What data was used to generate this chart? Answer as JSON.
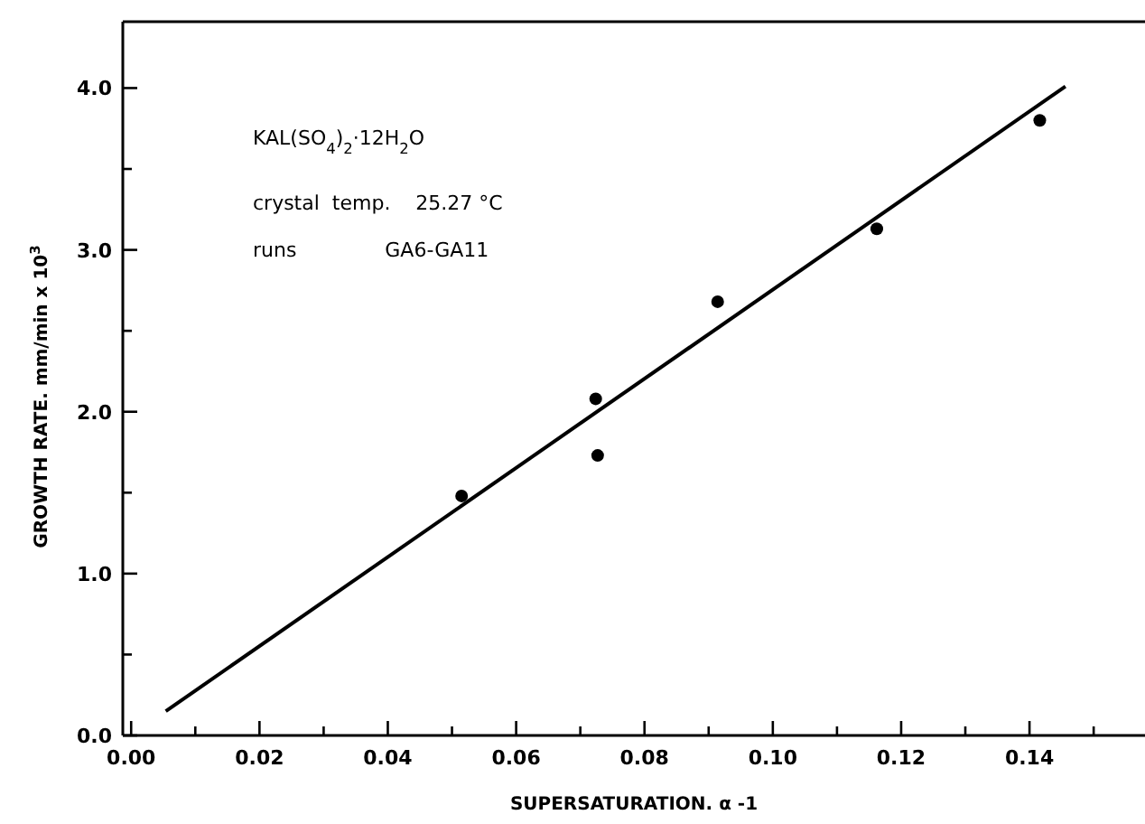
{
  "chart_data": {
    "type": "scatter",
    "xlabel": "SUPERSATURATION. α -1",
    "ylabel": "GROWTH RATE. mm/min x 10$^{3}$",
    "annotations": [
      "KAL(SO$_{4}$)$_{2}$·12H$_{2}$O",
      "crystal  temp.    25.27 °C",
      "runs              GA6-GA11"
    ],
    "xlim": [
      -0.0013,
      0.158
    ],
    "ylim": [
      0,
      4.41
    ],
    "xticks": [
      {
        "value": 0,
        "label": "0.00"
      },
      {
        "value": 0.01,
        "label": null
      },
      {
        "value": 0.02,
        "label": "0.02"
      },
      {
        "value": 0.03,
        "label": null
      },
      {
        "value": 0.04,
        "label": "0.04"
      },
      {
        "value": 0.05,
        "label": null
      },
      {
        "value": 0.06,
        "label": "0.06"
      },
      {
        "value": 0.07,
        "label": null
      },
      {
        "value": 0.08,
        "label": "0.08"
      },
      {
        "value": 0.09,
        "label": null
      },
      {
        "value": 0.1,
        "label": "0.10"
      },
      {
        "value": 0.11,
        "label": null
      },
      {
        "value": 0.12,
        "label": "0.12"
      },
      {
        "value": 0.13,
        "label": null
      },
      {
        "value": 0.14,
        "label": "0.14"
      },
      {
        "value": 0.15,
        "label": null
      }
    ],
    "yticks": [
      {
        "value": 0,
        "label": "0.0"
      },
      {
        "value": 0.5,
        "label": null
      },
      {
        "value": 1,
        "label": "1.0"
      },
      {
        "value": 1.5,
        "label": null
      },
      {
        "value": 2,
        "label": "2.0"
      },
      {
        "value": 2.5,
        "label": null
      },
      {
        "value": 3,
        "label": "3.0"
      },
      {
        "value": 3.5,
        "label": null
      },
      {
        "value": 4,
        "label": "4.0"
      }
    ],
    "grid": false,
    "series": [
      {
        "color": "#000000",
        "marker": "circle",
        "x": [
          0.0515,
          0.0724,
          0.0727,
          0.0914,
          0.1162,
          0.1416
        ],
        "values": [
          1.48,
          2.08,
          1.73,
          2.68,
          3.13,
          3.8
        ]
      },
      {
        "type": "line",
        "color": "#000000",
        "x": [
          0.0054,
          0.1456
        ],
        "values": [
          0.15,
          4.01
        ],
        "line_style": "solid",
        "marker": "none"
      }
    ]
  }
}
